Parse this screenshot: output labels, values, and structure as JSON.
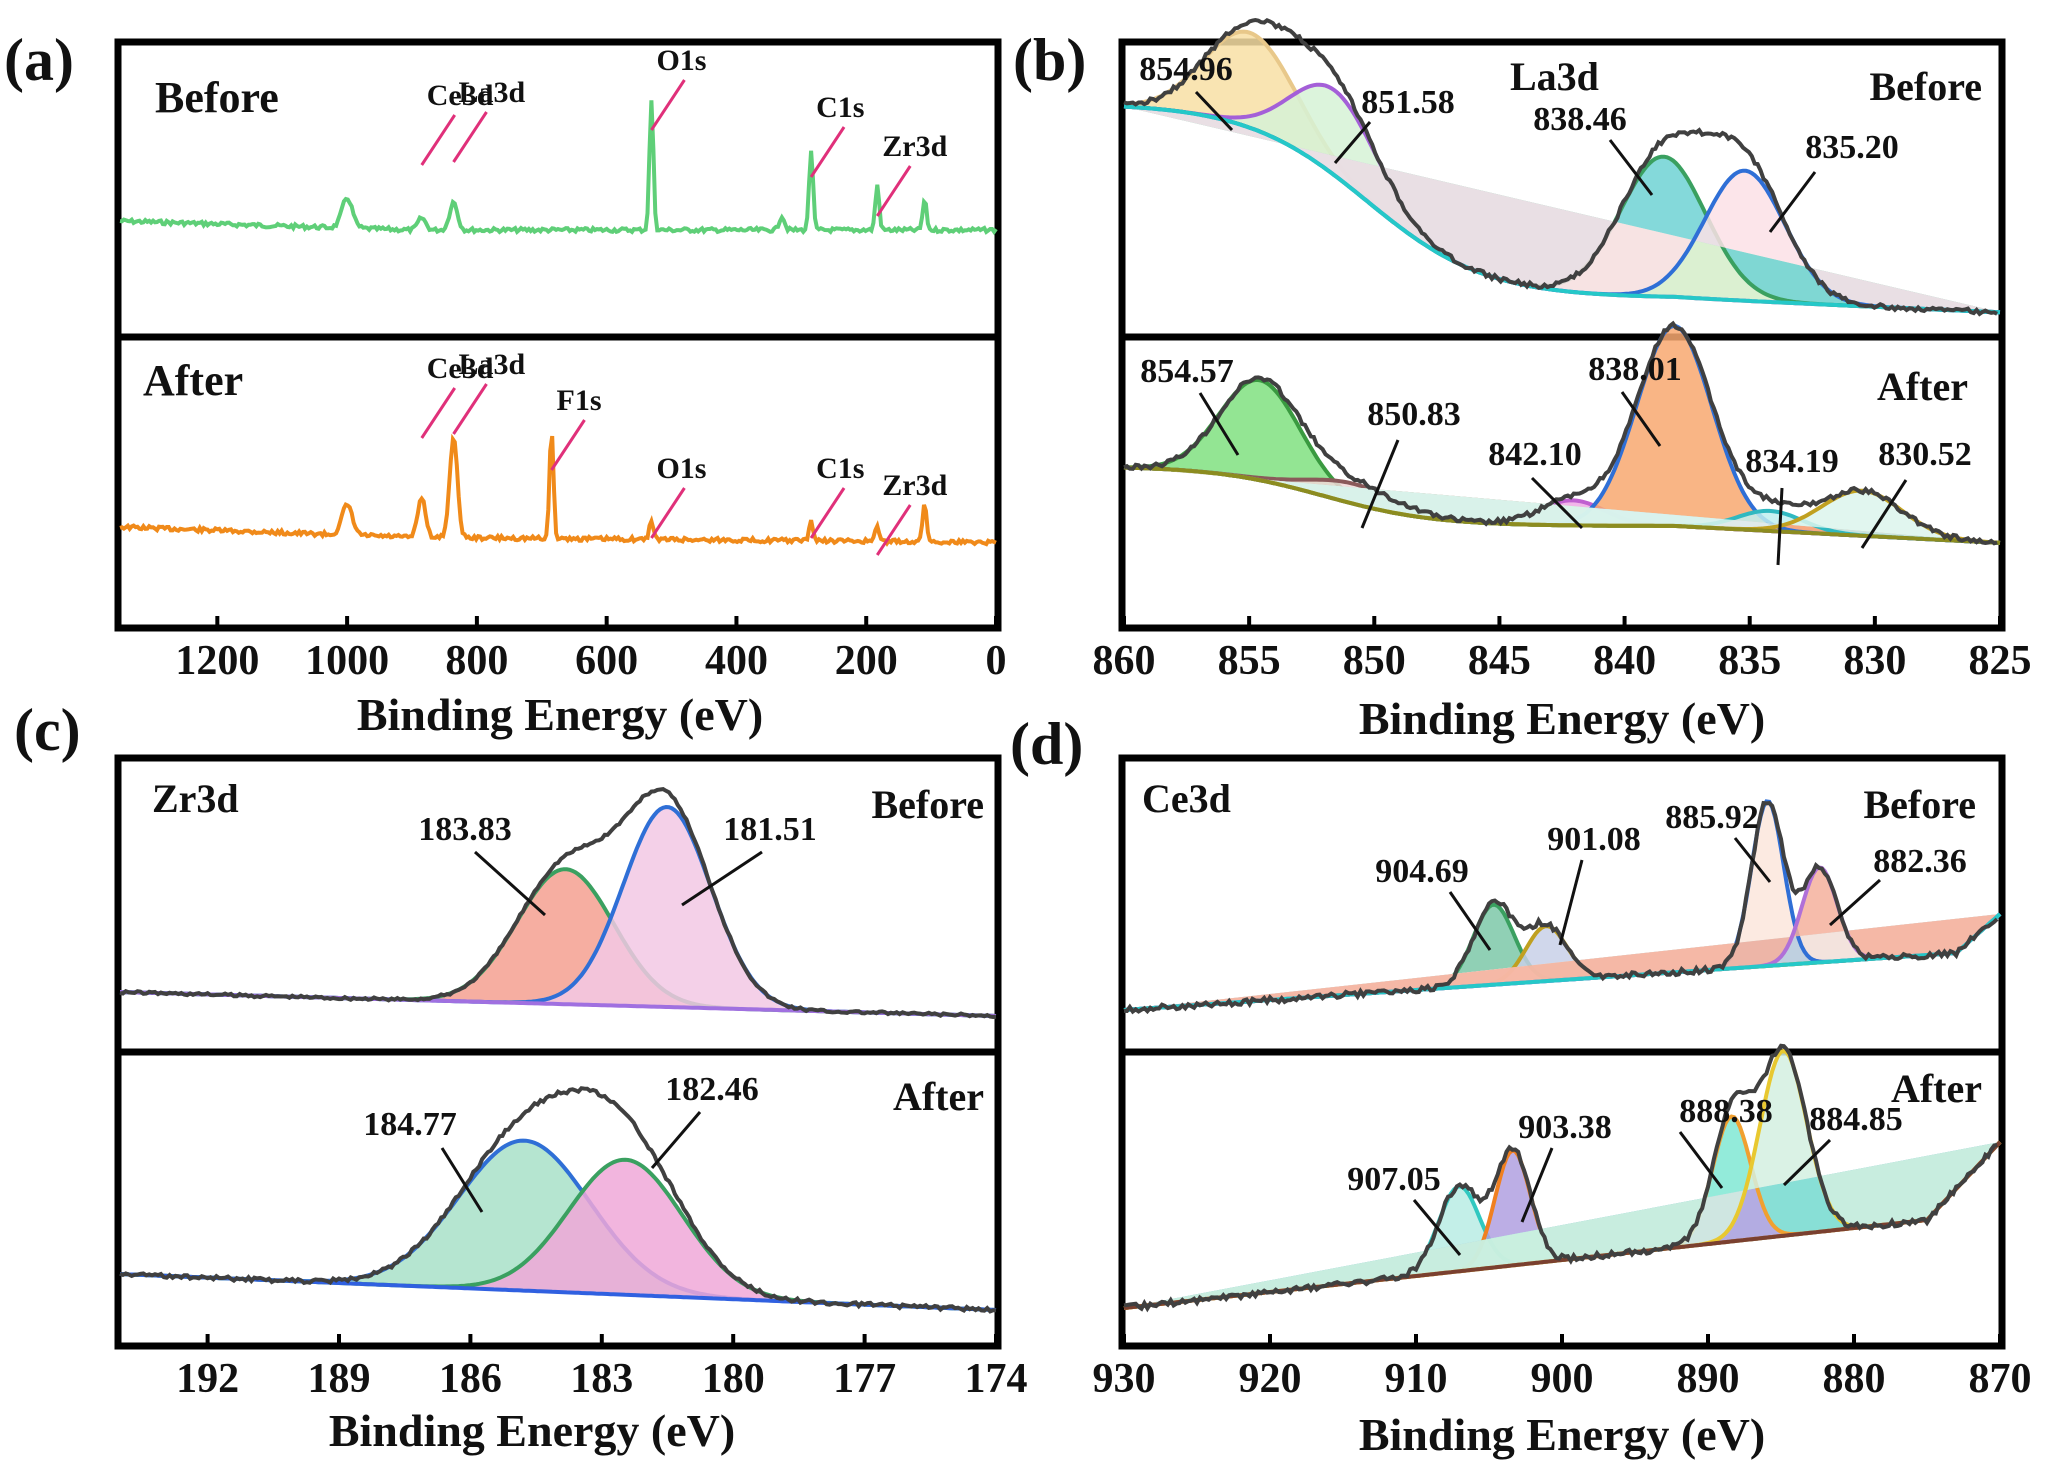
{
  "colors": {
    "frame": "#000000",
    "survey_before": "#5fcf78",
    "survey_after": "#f08a1a",
    "marker": "#e0307a",
    "raw": "#404040"
  },
  "chart_data": [
    {
      "id": "a",
      "type": "line",
      "panel_label": "(a)",
      "xlabel": "Binding Energy (eV)",
      "xlim": [
        1350,
        0
      ],
      "xticks": [
        "1200",
        "1000",
        "800",
        "600",
        "400",
        "200",
        "0"
      ],
      "subplots": [
        {
          "name": "Before",
          "color": "#5fcf78",
          "peaks": [
            {
              "label": "Ce3d",
              "x": 885
            },
            {
              "label": "La3d",
              "x": 836
            },
            {
              "label": "O1s",
              "x": 531
            },
            {
              "label": "C1s",
              "x": 285
            },
            {
              "label": "Zr3d",
              "x": 183
            }
          ]
        },
        {
          "name": "After",
          "color": "#f08a1a",
          "peaks": [
            {
              "label": "Ce3d",
              "x": 885
            },
            {
              "label": "La3d",
              "x": 836
            },
            {
              "label": "F1s",
              "x": 685
            },
            {
              "label": "O1s",
              "x": 531
            },
            {
              "label": "C1s",
              "x": 285
            },
            {
              "label": "Zr3d",
              "x": 183
            }
          ]
        }
      ]
    },
    {
      "id": "b",
      "type": "line",
      "panel_label": "(b)",
      "element": "La3d",
      "xlabel": "Binding Energy (eV)",
      "xlim": [
        860,
        825
      ],
      "xticks": [
        "860",
        "855",
        "850",
        "845",
        "840",
        "835",
        "830",
        "825"
      ],
      "subplots": [
        {
          "name": "Before",
          "peaks": [
            {
              "label": "854.96",
              "x": 854.96,
              "fill": "#f8dfa4",
              "edge": "#e8c88a"
            },
            {
              "label": "851.58",
              "x": 851.58,
              "fill": "#d6f2d6",
              "edge": "#a45fd8"
            },
            {
              "label": "838.46",
              "x": 838.46,
              "fill": "#6fd2d4",
              "edge": "#3aa060"
            },
            {
              "label": "835.20",
              "x": 835.2,
              "fill": "#fbe1e6",
              "edge": "#2f6fd6"
            }
          ]
        },
        {
          "name": "After",
          "peaks": [
            {
              "label": "854.57",
              "x": 854.57,
              "fill": "#80e080",
              "edge": "#3a9a40"
            },
            {
              "label": "850.83",
              "x": 850.83,
              "fill": "#f2d8d8",
              "edge": "#8a5a5a"
            },
            {
              "label": "842.10",
              "x": 842.1,
              "fill": "#f0a8e6",
              "edge": "#c060d0"
            },
            {
              "label": "838.01",
              "x": 838.01,
              "fill": "#f8a870",
              "edge": "#2f6fd6"
            },
            {
              "label": "834.19",
              "x": 834.19,
              "fill": "#bfeef0",
              "edge": "#30b8c0"
            },
            {
              "label": "830.52",
              "x": 830.52,
              "fill": "#dcf4ec",
              "edge": "#c0a020"
            }
          ]
        }
      ]
    },
    {
      "id": "c",
      "type": "line",
      "panel_label": "(c)",
      "element": "Zr3d",
      "xlabel": "Binding Energy (eV)",
      "xlim": [
        194,
        174
      ],
      "xticks": [
        "192",
        "189",
        "186",
        "183",
        "180",
        "177",
        "174"
      ],
      "subplots": [
        {
          "name": "Before",
          "peaks": [
            {
              "label": "183.83",
              "x": 183.83,
              "fill": "#f4a090",
              "edge": "#3aa060"
            },
            {
              "label": "181.51",
              "x": 181.51,
              "fill": "#f2c8e4",
              "edge": "#2f6fd6"
            }
          ]
        },
        {
          "name": "After",
          "peaks": [
            {
              "label": "184.77",
              "x": 184.77,
              "fill": "#a8e0c8",
              "edge": "#2f6fd6"
            },
            {
              "label": "182.46",
              "x": 182.46,
              "fill": "#f0a8d8",
              "edge": "#3aa060"
            }
          ]
        }
      ]
    },
    {
      "id": "d",
      "type": "line",
      "panel_label": "(d)",
      "element": "Ce3d",
      "xlabel": "Binding Energy (eV)",
      "xlim": [
        930,
        870
      ],
      "xticks": [
        "930",
        "920",
        "910",
        "900",
        "890",
        "880",
        "870"
      ],
      "subplots": [
        {
          "name": "Before",
          "peaks": [
            {
              "label": "904.69",
              "x": 904.69,
              "fill": "#7cc8a8",
              "edge": "#3aa060"
            },
            {
              "label": "901.08",
              "x": 901.08,
              "fill": "#c8d0e8",
              "edge": "#c0a020"
            },
            {
              "label": "885.92",
              "x": 885.92,
              "fill": "#fbe6dc",
              "edge": "#2f6fd6"
            },
            {
              "label": "882.36",
              "x": 882.36,
              "fill": "#f4b09c",
              "edge": "#b070d8"
            }
          ]
        },
        {
          "name": "After",
          "peaks": [
            {
              "label": "907.05",
              "x": 907.05,
              "fill": "#b8ece4",
              "edge": "#30c8c0"
            },
            {
              "label": "903.38",
              "x": 903.38,
              "fill": "#b0a0e0",
              "edge": "#f08020"
            },
            {
              "label": "888.38",
              "x": 888.38,
              "fill": "#80e8d4",
              "edge": "#f0a030"
            },
            {
              "label": "884.85",
              "x": 884.85,
              "fill": "#d4f0e0",
              "edge": "#e8c830"
            }
          ]
        }
      ]
    }
  ]
}
